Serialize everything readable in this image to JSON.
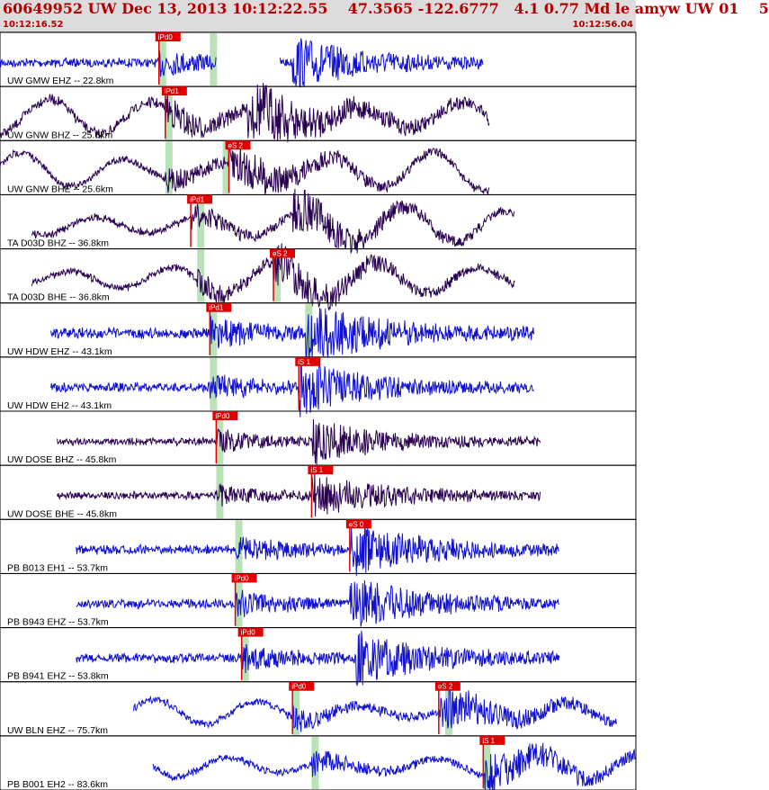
{
  "header": {
    "title": "60649952 UW Dec 13, 2013 10:12:22.55    47.3565 -122.6777   4.1 0.77 Md le amyw UW 01    5",
    "start_time": "10:12:16.52",
    "end_time": "10:12:56.04"
  },
  "colors": {
    "header_bg": "#dcdcdc",
    "header_text": "#b00000",
    "pick_red": "#e00000",
    "window_green": "#b9e2b9"
  },
  "chart_data": {
    "type": "seismogram",
    "time_range": [
      "10:12:16.52",
      "10:12:56.04"
    ],
    "traces": [
      {
        "label": "UW GMW EHZ -- 22.8km",
        "color": "#1010d0",
        "data_start": 0.0,
        "data_end": 0.76,
        "gap": [
          0.34,
          0.44
        ],
        "ptime": 0.25,
        "stime": 0.46,
        "amp": 6,
        "lp": 0,
        "picks": [
          {
            "label": "iPd0",
            "t": 0.25
          }
        ],
        "windows": [
          0.25,
          0.33
        ]
      },
      {
        "label": "UW GNW BHZ -- 25.6km",
        "color": "#2a0050",
        "data_start": 0.0,
        "data_end": 0.77,
        "ptime": 0.26,
        "stime": 0.39,
        "amp": 7,
        "lp": 20,
        "picks": [
          {
            "label": "iPd1",
            "t": 0.26
          }
        ],
        "windows": [
          0.26
        ]
      },
      {
        "label": "UW GNW BHE -- 25.6km",
        "color": "#2a0050",
        "data_start": 0.0,
        "data_end": 0.77,
        "ptime": 0.26,
        "stime": 0.36,
        "amp": 5,
        "lp": 22,
        "picks": [
          {
            "label": "eS 2",
            "t": 0.36
          }
        ],
        "windows": [
          0.26,
          0.35
        ]
      },
      {
        "label": "TA D03D BHZ -- 36.8km",
        "color": "#2a0050",
        "data_start": 0.05,
        "data_end": 0.81,
        "ptime": 0.3,
        "stime": 0.46,
        "amp": 5,
        "lp": 20,
        "picks": [
          {
            "label": "iPd1",
            "t": 0.3
          }
        ],
        "windows": [
          0.31
        ]
      },
      {
        "label": "TA D03D BHE -- 36.8km",
        "color": "#2a0050",
        "data_start": 0.05,
        "data_end": 0.81,
        "ptime": 0.31,
        "stime": 0.43,
        "amp": 5,
        "lp": 20,
        "picks": [
          {
            "label": "eS 2",
            "t": 0.43
          }
        ],
        "windows": [
          0.31,
          0.43
        ]
      },
      {
        "label": "UW HDW EHZ -- 43.1km",
        "color": "#1010d0",
        "data_start": 0.08,
        "data_end": 0.84,
        "ptime": 0.33,
        "stime": 0.48,
        "amp": 7,
        "lp": 0,
        "picks": [
          {
            "label": "iPd1",
            "t": 0.33
          }
        ],
        "windows": [
          0.33,
          0.48
        ]
      },
      {
        "label": "UW HDW EH2 -- 43.1km",
        "color": "#1010d0",
        "data_start": 0.08,
        "data_end": 0.84,
        "ptime": 0.33,
        "stime": 0.47,
        "amp": 6,
        "lp": 0,
        "picks": [
          {
            "label": "iS 1",
            "t": 0.47
          }
        ],
        "windows": [
          0.33
        ]
      },
      {
        "label": "UW DOSE BHZ -- 45.8km",
        "color": "#2a0050",
        "data_start": 0.09,
        "data_end": 0.85,
        "ptime": 0.34,
        "stime": 0.49,
        "amp": 5,
        "lp": 0,
        "picks": [
          {
            "label": "iPd0",
            "t": 0.34
          }
        ],
        "windows": [
          0.34
        ]
      },
      {
        "label": "UW DOSE BHE -- 45.8km",
        "color": "#2a0050",
        "data_start": 0.09,
        "data_end": 0.85,
        "ptime": 0.34,
        "stime": 0.49,
        "amp": 5,
        "lp": 0,
        "picks": [
          {
            "label": "iS 1",
            "t": 0.49
          }
        ],
        "windows": [
          0.34
        ]
      },
      {
        "label": "PB B013 EH1 -- 53.7km",
        "color": "#1010d0",
        "data_start": 0.12,
        "data_end": 0.88,
        "ptime": 0.37,
        "stime": 0.55,
        "amp": 6,
        "lp": 0,
        "picks": [
          {
            "label": "eS 0",
            "t": 0.55
          }
        ],
        "windows": [
          0.37
        ]
      },
      {
        "label": "PB B943 EHZ -- 53.7km",
        "color": "#1010d0",
        "data_start": 0.12,
        "data_end": 0.88,
        "ptime": 0.37,
        "stime": 0.55,
        "amp": 6,
        "lp": 0,
        "picks": [
          {
            "label": "iPd0",
            "t": 0.37
          }
        ],
        "windows": [
          0.37
        ]
      },
      {
        "label": "PB B941 EHZ -- 53.8km",
        "color": "#1010d0",
        "data_start": 0.12,
        "data_end": 0.88,
        "ptime": 0.38,
        "stime": 0.56,
        "amp": 6,
        "lp": 0,
        "picks": [
          {
            "label": "iPd0",
            "t": 0.38
          }
        ],
        "windows": [
          0.38
        ]
      },
      {
        "label": "UW BLN EHZ -- 75.7km",
        "color": "#1010d0",
        "data_start": 0.21,
        "data_end": 0.97,
        "ptime": 0.46,
        "stime": 0.69,
        "amp": 5,
        "lp": 14,
        "picks": [
          {
            "label": "iPd0",
            "t": 0.46
          },
          {
            "label": "eS 2",
            "t": 0.69
          }
        ],
        "windows": [
          0.46,
          0.7
        ]
      },
      {
        "label": "PB B001 EH2 -- 83.6km",
        "color": "#1010d0",
        "data_start": 0.24,
        "data_end": 1.0,
        "ptime": 0.49,
        "stime": 0.76,
        "amp": 5,
        "lp": 14,
        "picks": [
          {
            "label": "iS 1",
            "t": 0.76
          }
        ],
        "windows": [
          0.49,
          0.76
        ]
      }
    ]
  }
}
